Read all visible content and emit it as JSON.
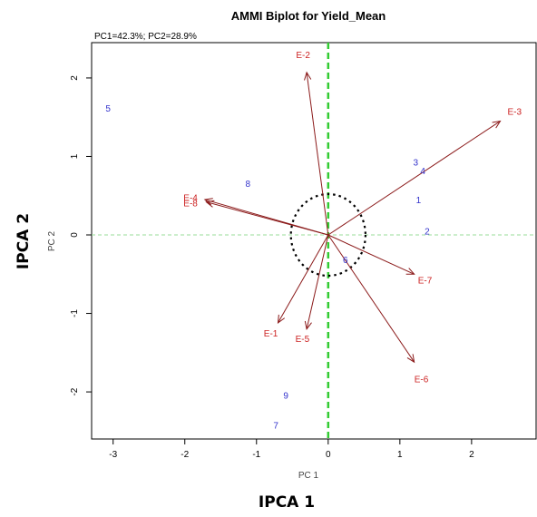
{
  "chart_data": {
    "type": "scatter",
    "title": "AMMI Biplot for Yield_Mean",
    "subtitle": "PC1=42.3%; PC2=28.9%",
    "xlabel": "PC 1",
    "ylabel": "PC 2",
    "xlim": [
      -3.3,
      2.9
    ],
    "ylim": [
      -2.6,
      2.45
    ],
    "x_ticks": [
      -3,
      -2,
      -1,
      0,
      1,
      2
    ],
    "y_ticks": [
      -2,
      -1,
      0,
      1,
      2
    ],
    "grid": false,
    "reference_lines": {
      "vertical_x": 0,
      "horizontal_y": 0
    },
    "circle_radius": 0.52,
    "genotypes": [
      {
        "label": "5",
        "x": -3.07,
        "y": 1.62
      },
      {
        "label": "8",
        "x": -1.12,
        "y": 0.66
      },
      {
        "label": "3",
        "x": 1.22,
        "y": 0.93
      },
      {
        "label": "4",
        "x": 1.32,
        "y": 0.82
      },
      {
        "label": "1",
        "x": 1.26,
        "y": 0.45
      },
      {
        "label": "2",
        "x": 1.38,
        "y": 0.05
      },
      {
        "label": "6",
        "x": 0.24,
        "y": -0.31
      },
      {
        "label": "9",
        "x": -0.59,
        "y": -2.04
      },
      {
        "label": "7",
        "x": -0.73,
        "y": -2.42
      }
    ],
    "environments": [
      {
        "label": "E-2",
        "x": -0.3,
        "y": 2.07,
        "lx": -0.35,
        "ly": 2.3
      },
      {
        "label": "E-3",
        "x": 2.4,
        "y": 1.45,
        "lx": 2.6,
        "ly": 1.58
      },
      {
        "label": "E-4",
        "x": -1.72,
        "y": 0.45,
        "lx": -1.92,
        "ly": 0.48
      },
      {
        "label": "E-8",
        "x": -1.7,
        "y": 0.42,
        "lx": -1.92,
        "ly": 0.41
      },
      {
        "label": "E-7",
        "x": 1.2,
        "y": -0.5,
        "lx": 1.35,
        "ly": -0.57
      },
      {
        "label": "E-1",
        "x": -0.7,
        "y": -1.12,
        "lx": -0.8,
        "ly": -1.25
      },
      {
        "label": "E-5",
        "x": -0.3,
        "y": -1.2,
        "lx": -0.36,
        "ly": -1.32
      },
      {
        "label": "E-6",
        "x": 1.2,
        "y": -1.62,
        "lx": 1.3,
        "ly": -1.83
      }
    ],
    "colors": {
      "genotype": "#3333cc",
      "environment": "#cc2222",
      "arrow": "#8b1a1a",
      "reference_v": "#33cc33",
      "reference_h": "#99dd99",
      "circle": "#000000"
    },
    "outer_xlabel": "IPCA 1",
    "outer_ylabel": "IPCA 2"
  }
}
